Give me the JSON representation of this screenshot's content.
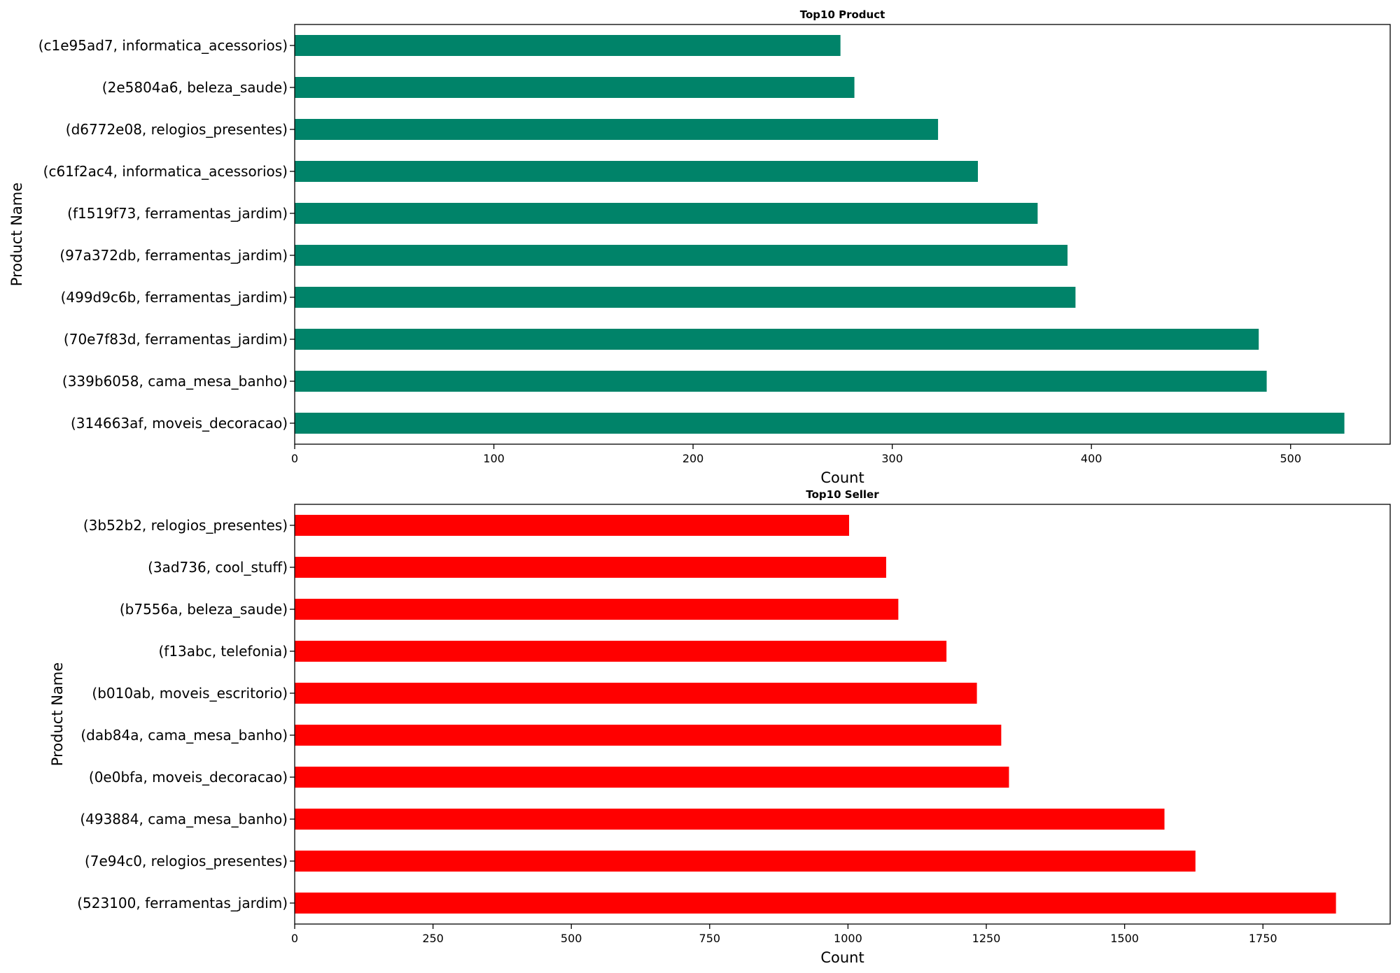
{
  "chart_data": [
    {
      "type": "bar",
      "orientation": "horizontal",
      "title": "Top10 Product",
      "xlabel": "Count",
      "ylabel": "Product Name",
      "bar_color": "#008369",
      "xlim": [
        0,
        550
      ],
      "xticks": [
        0,
        100,
        200,
        300,
        400,
        500
      ],
      "categories": [
        "(314663af, moveis_decoracao)",
        "(339b6058, cama_mesa_banho)",
        "(70e7f83d, ferramentas_jardim)",
        "(499d9c6b, ferramentas_jardim)",
        "(97a372db, ferramentas_jardim)",
        "(f1519f73, ferramentas_jardim)",
        "(c61f2ac4, informatica_acessorios)",
        "(d6772e08, relogios_presentes)",
        "(2e5804a6, beleza_saude)",
        "(c1e95ad7, informatica_acessorios)"
      ],
      "values": [
        527,
        488,
        484,
        392,
        388,
        373,
        343,
        323,
        281,
        274
      ]
    },
    {
      "type": "bar",
      "orientation": "horizontal",
      "title": "Top10 Seller",
      "xlabel": "Count",
      "ylabel": "Product Name",
      "bar_color": "#ff0000",
      "xlim": [
        0,
        1980
      ],
      "xticks": [
        0,
        250,
        500,
        750,
        1000,
        1250,
        1500,
        1750
      ],
      "categories": [
        "(523100, ferramentas_jardim)",
        "(7e94c0, relogios_presentes)",
        "(493884, cama_mesa_banho)",
        "(0e0bfa, moveis_decoracao)",
        "(dab84a, cama_mesa_banho)",
        "(b010ab, moveis_escritorio)",
        "(f13abc, telefonia)",
        "(b7556a, beleza_saude)",
        "(3ad736, cool_stuff)",
        "(3b52b2, relogios_presentes)"
      ],
      "values": [
        1882,
        1628,
        1572,
        1291,
        1277,
        1233,
        1178,
        1091,
        1069,
        1002
      ]
    }
  ]
}
